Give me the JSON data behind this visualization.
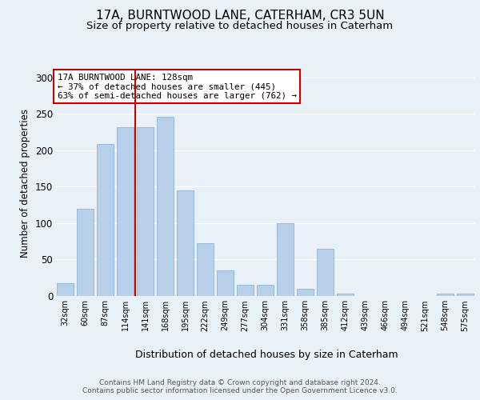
{
  "title": "17A, BURNTWOOD LANE, CATERHAM, CR3 5UN",
  "subtitle": "Size of property relative to detached houses in Caterham",
  "xlabel": "Distribution of detached houses by size in Caterham",
  "ylabel": "Number of detached properties",
  "annotation_line1": "17A BURNTWOOD LANE: 128sqm",
  "annotation_line2": "← 37% of detached houses are smaller (445)",
  "annotation_line3": "63% of semi-detached houses are larger (762) →",
  "categories": [
    "32sqm",
    "60sqm",
    "87sqm",
    "114sqm",
    "141sqm",
    "168sqm",
    "195sqm",
    "222sqm",
    "249sqm",
    "277sqm",
    "304sqm",
    "331sqm",
    "358sqm",
    "385sqm",
    "412sqm",
    "439sqm",
    "466sqm",
    "494sqm",
    "521sqm",
    "548sqm",
    "575sqm"
  ],
  "bar_heights": [
    18,
    120,
    208,
    232,
    232,
    246,
    145,
    72,
    35,
    15,
    15,
    100,
    10,
    65,
    3,
    0,
    0,
    0,
    0,
    3,
    3
  ],
  "red_line_index": 4,
  "bar_color": "#b8d0ea",
  "bar_edge_color": "#8fb3d8",
  "red_line_color": "#cc0000",
  "annotation_box_color": "#ffffff",
  "annotation_box_edge_color": "#cc0000",
  "footer_line1": "Contains HM Land Registry data © Crown copyright and database right 2024.",
  "footer_line2": "Contains public sector information licensed under the Open Government Licence v3.0.",
  "ylim": [
    0,
    310
  ],
  "yticks": [
    0,
    50,
    100,
    150,
    200,
    250,
    300
  ],
  "background_color": "#e8f0f8",
  "title_fontsize": 11,
  "subtitle_fontsize": 9.5,
  "ylabel_fontsize": 8.5,
  "xlabel_fontsize": 9
}
